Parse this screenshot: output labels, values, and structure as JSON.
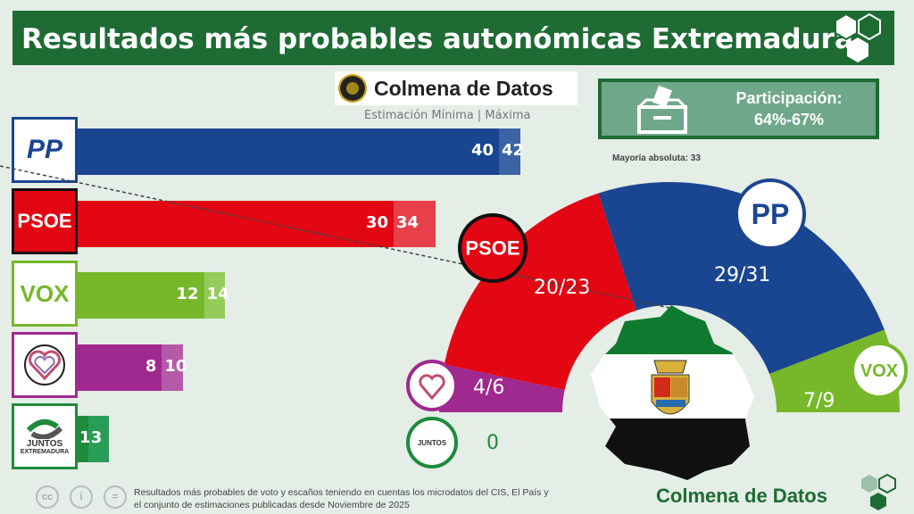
{
  "title": "Resultados más probables autonómicas Extremadura",
  "brand": "Colmena de Datos",
  "subtitle": "Estimación Mínima | Máxima",
  "participation": {
    "label": "Participación:",
    "value": "64%-67%"
  },
  "majority_label": "Mayoría absoluta: 33",
  "footer": {
    "line1": "Resultados más probables de voto y escaños teniendo en cuentas los microdatos del CIS, El País y",
    "line2": "el conjunto de estimaciones publicadas desde Noviembre de 2025",
    "brand": "Colmena de Datos",
    "cc": [
      "cc",
      "i",
      "="
    ]
  },
  "chart_data": [
    {
      "type": "bar",
      "orientation": "horizontal",
      "categories": [
        "PP",
        "PSOE",
        "VOX",
        "Podemos",
        "Juntos x Extremadura"
      ],
      "series": [
        {
          "name": "Mínima",
          "values": [
            40,
            30,
            12,
            8,
            1
          ]
        },
        {
          "name": "Máxima",
          "values": [
            42,
            34,
            14,
            10,
            3
          ]
        }
      ],
      "labels_min": [
        "40",
        "30",
        "12",
        "8",
        "1"
      ],
      "labels_max": [
        "42",
        "34",
        "14",
        "10",
        "3"
      ],
      "colors": [
        "#1a4590",
        "#e30613",
        "#76b82a",
        "#a0298f",
        "#1f8a3c"
      ],
      "ext_colors": [
        "#3c64a4",
        "#e8404a",
        "#95cb5a",
        "#b55aa8",
        "#2a9c55"
      ]
    },
    {
      "type": "hemicycle",
      "categories": [
        "Podemos",
        "PSOE",
        "PP",
        "VOX",
        "Juntos x Extremadura"
      ],
      "labels": [
        "4/6",
        "20/23",
        "29/31",
        "7/9",
        "0"
      ],
      "min": [
        4,
        20,
        29,
        7,
        0
      ],
      "max": [
        6,
        23,
        31,
        9,
        0
      ],
      "colors": [
        "#a0298f",
        "#e30613",
        "#1a4590",
        "#76b82a",
        "#1f8a3c"
      ],
      "majority": 33
    }
  ],
  "logos": {
    "pp": "PP",
    "psoe": "PSOE",
    "vox": "VOX",
    "juntos": "JUNTOS",
    "juntos2": "EXTREMADURA"
  }
}
